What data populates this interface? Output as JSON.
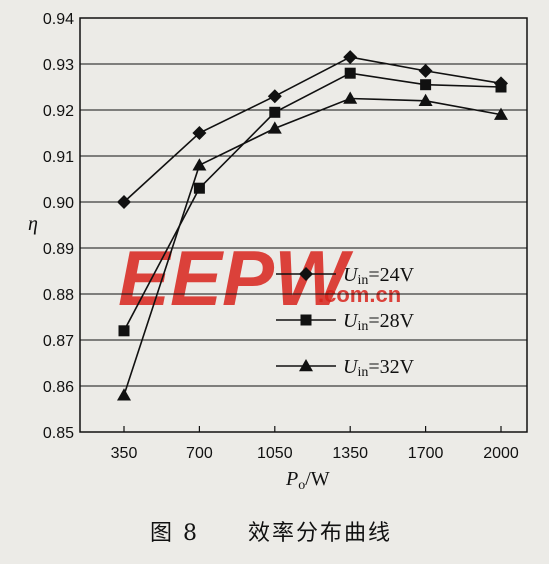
{
  "chart_data": {
    "type": "line",
    "x": [
      350,
      700,
      1050,
      1350,
      1700,
      2000
    ],
    "x_tick_labels": [
      "350",
      "700",
      "1050",
      "1350",
      "1700",
      "2000"
    ],
    "y_tick_labels": [
      "0.85",
      "0.86",
      "0.87",
      "0.88",
      "0.89",
      "0.90",
      "0.91",
      "0.92",
      "0.93",
      "0.94"
    ],
    "ylim": [
      0.85,
      0.94
    ],
    "grid": "horizontal",
    "legend_position": "center-right",
    "xlabel": {
      "main": "P",
      "sub": "o",
      "unit": "/W"
    },
    "ylabel": "η",
    "series": [
      {
        "label_main": "U",
        "label_sub": "in",
        "label_value": "=24V",
        "marker": "diamond",
        "values": [
          0.9,
          0.915,
          0.923,
          0.9315,
          0.9285,
          0.9258
        ]
      },
      {
        "label_main": "U",
        "label_sub": "in",
        "label_value": "=28V",
        "marker": "square",
        "values": [
          0.872,
          0.903,
          0.9195,
          0.928,
          0.9255,
          0.925
        ]
      },
      {
        "label_main": "U",
        "label_sub": "in",
        "label_value": "=32V",
        "marker": "triangle",
        "values": [
          0.858,
          0.908,
          0.916,
          0.9225,
          0.922,
          0.919
        ]
      }
    ]
  },
  "caption": {
    "figure_label": "图 8",
    "title": "效率分布曲线"
  },
  "watermark": {
    "text": "EEPW",
    "sub": ".com.cn"
  }
}
